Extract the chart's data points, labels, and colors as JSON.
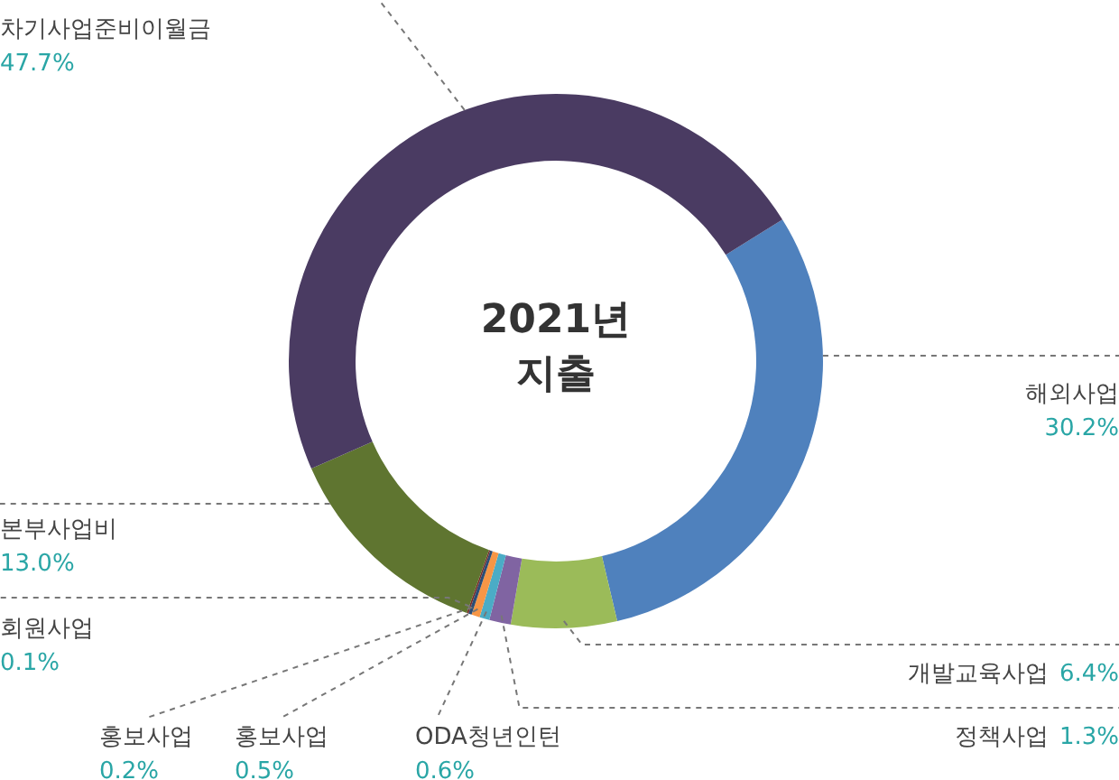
{
  "chart_data": {
    "type": "donut",
    "title": "2021년 지출",
    "categories": [
      "해외사업",
      "개발교육사업",
      "정책사업",
      "ODA청년인턴",
      "홍보사업",
      "홍보사업",
      "회원사업",
      "본부사업비",
      "차기사업준비이월금"
    ],
    "values": [
      30.2,
      6.4,
      1.3,
      0.6,
      0.5,
      0.2,
      0.1,
      13.0,
      47.7
    ],
    "colors": [
      "#4f81bd",
      "#9bbb59",
      "#8064a2",
      "#4bacc6",
      "#f79646",
      "#2c4d75",
      "#772c2a",
      "#5f7530",
      "#4a3b62"
    ],
    "value_labels": [
      "30.2%",
      "6.4%",
      "1.3%",
      "0.6%",
      "0.5%",
      "0.2%",
      "0.1%",
      "13.0%",
      "47.7%"
    ]
  }
}
